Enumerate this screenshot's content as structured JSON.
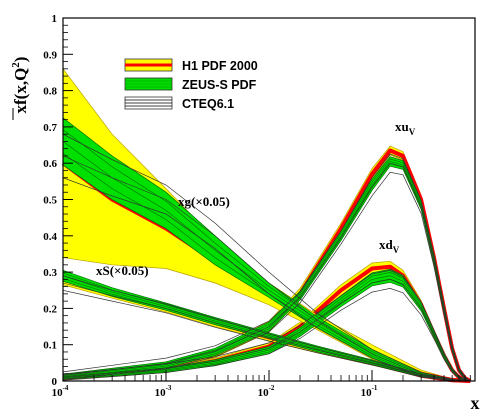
{
  "chart_data": {
    "type": "line",
    "title": "",
    "xlabel": "x",
    "ylabel": "xf(x,Q",
    "ylabel_sup": "2",
    "ylabel_close": ")",
    "xscale": "log",
    "xlim": [
      0.0001,
      1.0
    ],
    "ylim": [
      0,
      1
    ],
    "y_ticks": [
      "0",
      "0.1",
      "0.2",
      "0.3",
      "0.4",
      "0.5",
      "0.6",
      "0.7",
      "0.8",
      "0.9",
      "1"
    ],
    "x_ticks": [
      {
        "base": "10",
        "exp": "-4"
      },
      {
        "base": "10",
        "exp": "-3"
      },
      {
        "base": "10",
        "exp": "-2"
      },
      {
        "base": "10",
        "exp": "-1"
      }
    ],
    "legend": [
      {
        "label": "H1 PDF 2000",
        "fill": "#ffff00",
        "line": "#ff0000"
      },
      {
        "label": "ZEUS-S PDF",
        "fill": "#00dd00",
        "line": "#00aa00"
      },
      {
        "label": "CTEQ6.1",
        "fill": "#ffffff",
        "line": "#000000"
      }
    ],
    "annotations": {
      "xuv": {
        "main": "xu",
        "sub": "V"
      },
      "xdv": {
        "main": "xd",
        "sub": "V"
      },
      "xg": "xg(×0.05)",
      "xs": "xS(×0.05)"
    },
    "series": [
      {
        "name": "xu_v",
        "x": [
          0.0001,
          0.001,
          0.003,
          0.01,
          0.02,
          0.05,
          0.1,
          0.15,
          0.2,
          0.3,
          0.4,
          0.5,
          0.6,
          0.7,
          0.8,
          0.9
        ],
        "h1": {
          "central": [
            0.01,
            0.04,
            0.075,
            0.15,
            0.24,
            0.42,
            0.57,
            0.635,
            0.62,
            0.5,
            0.34,
            0.2,
            0.09,
            0.03,
            0.008,
            0.0
          ],
          "half_width": [
            0.006,
            0.008,
            0.01,
            0.015,
            0.015,
            0.015,
            0.015,
            0.012,
            0.012,
            0.012,
            0.012,
            0.01,
            0.008,
            0.005,
            0.003,
            0.0
          ]
        },
        "zeus": {
          "central": [
            0.012,
            0.045,
            0.08,
            0.15,
            0.235,
            0.4,
            0.54,
            0.605,
            0.595,
            0.485,
            0.335,
            0.2,
            0.09,
            0.03,
            0.008,
            0.0
          ],
          "half_width": [
            0.007,
            0.008,
            0.01,
            0.012,
            0.012,
            0.013,
            0.015,
            0.013,
            0.012,
            0.012,
            0.012,
            0.01,
            0.008,
            0.005,
            0.003,
            0.0
          ]
        },
        "cteq": {
          "central": [
            0.015,
            0.048,
            0.082,
            0.15,
            0.23,
            0.395,
            0.535,
            0.6,
            0.59,
            0.48,
            0.33,
            0.195,
            0.09,
            0.03,
            0.008,
            0.0
          ],
          "half_width": [
            0.01,
            0.015,
            0.015,
            0.015,
            0.015,
            0.018,
            0.025,
            0.025,
            0.022,
            0.018,
            0.015,
            0.012,
            0.008,
            0.005,
            0.003,
            0.0
          ]
        }
      },
      {
        "name": "xd_v",
        "x": [
          0.0001,
          0.001,
          0.003,
          0.01,
          0.02,
          0.05,
          0.1,
          0.15,
          0.2,
          0.3,
          0.4,
          0.5,
          0.6,
          0.7,
          0.8,
          0.9
        ],
        "h1": {
          "central": [
            0.008,
            0.03,
            0.055,
            0.095,
            0.15,
            0.25,
            0.31,
            0.315,
            0.29,
            0.21,
            0.13,
            0.07,
            0.03,
            0.01,
            0.003,
            0.0
          ],
          "half_width": [
            0.004,
            0.006,
            0.008,
            0.01,
            0.012,
            0.015,
            0.015,
            0.015,
            0.015,
            0.012,
            0.01,
            0.008,
            0.005,
            0.003,
            0.001,
            0.0
          ]
        },
        "zeus": {
          "central": [
            0.008,
            0.03,
            0.05,
            0.085,
            0.135,
            0.22,
            0.28,
            0.29,
            0.275,
            0.205,
            0.13,
            0.07,
            0.03,
            0.01,
            0.003,
            0.0
          ],
          "half_width": [
            0.004,
            0.006,
            0.008,
            0.01,
            0.012,
            0.015,
            0.018,
            0.018,
            0.016,
            0.012,
            0.01,
            0.008,
            0.005,
            0.003,
            0.001,
            0.0
          ]
        },
        "cteq": {
          "central": [
            0.01,
            0.035,
            0.055,
            0.09,
            0.135,
            0.215,
            0.27,
            0.28,
            0.265,
            0.2,
            0.128,
            0.068,
            0.03,
            0.01,
            0.003,
            0.0
          ],
          "half_width": [
            0.008,
            0.012,
            0.012,
            0.015,
            0.018,
            0.02,
            0.025,
            0.025,
            0.022,
            0.018,
            0.012,
            0.008,
            0.005,
            0.003,
            0.001,
            0.0
          ]
        }
      },
      {
        "name": "xg (x0.05)",
        "x": [
          0.0001,
          0.0003,
          0.001,
          0.003,
          0.01,
          0.03,
          0.1,
          0.3,
          0.6,
          0.9
        ],
        "h1": {
          "central": [
            0.6,
            0.5,
            0.42,
            0.33,
            0.24,
            0.16,
            0.08,
            0.02,
            0.003,
            0.0
          ],
          "half_width": [
            0.26,
            0.18,
            0.11,
            0.06,
            0.03,
            0.02,
            0.02,
            0.01,
            0.002,
            0.0
          ]
        },
        "zeus": {
          "central": [
            0.66,
            0.56,
            0.47,
            0.36,
            0.25,
            0.16,
            0.075,
            0.018,
            0.003,
            0.0
          ],
          "half_width": [
            0.065,
            0.06,
            0.05,
            0.04,
            0.02,
            0.015,
            0.012,
            0.006,
            0.002,
            0.0
          ]
        },
        "cteq": {
          "central": [
            0.62,
            0.56,
            0.5,
            0.4,
            0.27,
            0.165,
            0.075,
            0.018,
            0.003,
            0.0
          ],
          "half_width": [
            0.06,
            0.05,
            0.04,
            0.035,
            0.03,
            0.02,
            0.012,
            0.006,
            0.002,
            0.0
          ]
        }
      },
      {
        "name": "xS (x0.05)",
        "x": [
          0.0001,
          0.0003,
          0.001,
          0.003,
          0.01,
          0.03,
          0.1,
          0.3,
          0.6,
          0.9
        ],
        "h1": {
          "central": [
            0.28,
            0.24,
            0.2,
            0.16,
            0.12,
            0.085,
            0.05,
            0.015,
            0.002,
            0.0
          ],
          "half_width": [
            0.015,
            0.012,
            0.01,
            0.01,
            0.01,
            0.008,
            0.006,
            0.004,
            0.001,
            0.0
          ]
        },
        "zeus": {
          "central": [
            0.29,
            0.245,
            0.205,
            0.165,
            0.125,
            0.088,
            0.052,
            0.015,
            0.002,
            0.0
          ],
          "half_width": [
            0.015,
            0.012,
            0.01,
            0.01,
            0.008,
            0.008,
            0.006,
            0.004,
            0.001,
            0.0
          ]
        },
        "cteq": {
          "central": [
            0.27,
            0.235,
            0.2,
            0.16,
            0.12,
            0.085,
            0.05,
            0.015,
            0.002,
            0.0
          ],
          "half_width": [
            0.02,
            0.015,
            0.012,
            0.012,
            0.01,
            0.008,
            0.006,
            0.004,
            0.001,
            0.0
          ]
        }
      }
    ]
  }
}
